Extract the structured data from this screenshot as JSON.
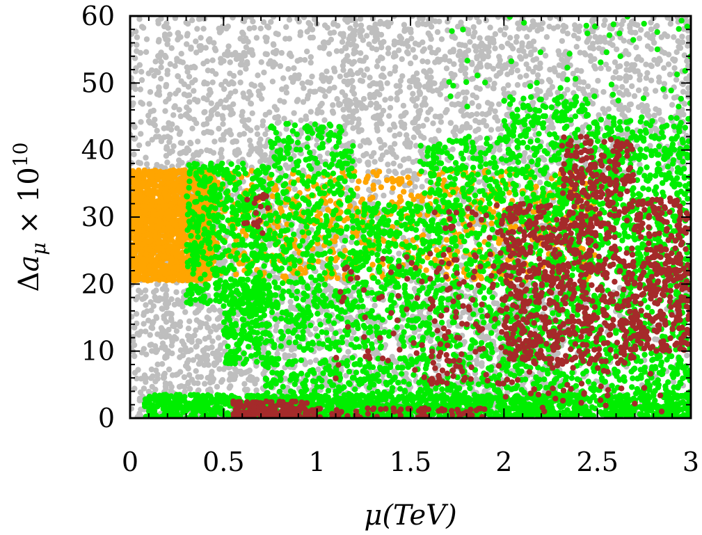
{
  "chart_data": {
    "type": "scatter",
    "title": "",
    "xlabel": "μ(TeV)",
    "ylabel_parts": {
      "delta": "Δ",
      "a": "a",
      "sub": "μ",
      "times": "×",
      "base": "10",
      "exp": "10"
    },
    "xlim": [
      0,
      3
    ],
    "ylim": [
      0,
      60
    ],
    "x_ticks": [
      {
        "value": 0,
        "label": "0"
      },
      {
        "value": 0.5,
        "label": "0.5"
      },
      {
        "value": 1,
        "label": "1"
      },
      {
        "value": 1.5,
        "label": "1.5"
      },
      {
        "value": 2,
        "label": "2"
      },
      {
        "value": 2.5,
        "label": "2.5"
      },
      {
        "value": 3,
        "label": "3"
      }
    ],
    "y_ticks": [
      {
        "value": 0,
        "label": "0"
      },
      {
        "value": 10,
        "label": "10"
      },
      {
        "value": 20,
        "label": "20"
      },
      {
        "value": 30,
        "label": "30"
      },
      {
        "value": 40,
        "label": "40"
      },
      {
        "value": 50,
        "label": "50"
      },
      {
        "value": 60,
        "label": "60"
      }
    ],
    "grid": false,
    "legend": "none",
    "colors": {
      "gray": "#bebebe",
      "orange": "#ffa500",
      "green": "#00ee00",
      "brown": "#a52a2a"
    },
    "series": [
      {
        "color": "gray",
        "regions": [
          {
            "x": [
              0.18,
              1.2
            ],
            "y": [
              0,
              60
            ],
            "n": 1700
          },
          {
            "x": [
              0.0,
              0.2
            ],
            "y": [
              0,
              60
            ],
            "n": 260
          },
          {
            "x": [
              1.15,
              3.0
            ],
            "y": [
              36,
              60
            ],
            "n": 1300
          },
          {
            "x": [
              1.2,
              2.3
            ],
            "y": [
              0,
              36
            ],
            "n": 900
          },
          {
            "x": [
              0.0,
              3.0
            ],
            "y": [
              0,
              20
            ],
            "n": 600
          }
        ]
      },
      {
        "color": "orange",
        "regions": [
          {
            "x": [
              0.0,
              0.45
            ],
            "y": [
              20.5,
              37
            ],
            "n": 1600
          },
          {
            "x": [
              0.45,
              2.5
            ],
            "y": [
              20.5,
              37
            ],
            "n": 700
          }
        ]
      },
      {
        "color": "green",
        "regions": [
          {
            "x": [
              0.07,
              3.0
            ],
            "y": [
              0,
              3.5
            ],
            "n": 1400
          },
          {
            "x": [
              0.3,
              0.75
            ],
            "y": [
              17,
              38
            ],
            "n": 520
          },
          {
            "x": [
              0.5,
              0.75
            ],
            "y": [
              8,
              20
            ],
            "n": 180
          },
          {
            "x": [
              0.75,
              1.2
            ],
            "y": [
              10,
              44
            ],
            "n": 520
          },
          {
            "x": [
              1.2,
              1.55
            ],
            "y": [
              10,
              32
            ],
            "n": 300
          },
          {
            "x": [
              0.7,
              1.6
            ],
            "y": [
              3,
              9
            ],
            "n": 220
          },
          {
            "x": [
              1.55,
              2.0
            ],
            "y": [
              3,
              42
            ],
            "n": 560
          },
          {
            "x": [
              2.0,
              2.45
            ],
            "y": [
              3,
              48
            ],
            "n": 760
          },
          {
            "x": [
              2.45,
              3.0
            ],
            "y": [
              3,
              45
            ],
            "n": 880
          },
          {
            "x": [
              1.7,
              3.0
            ],
            "y": [
              45,
              60
            ],
            "n": 60
          }
        ]
      },
      {
        "color": "brown",
        "regions": [
          {
            "x": [
              0.55,
              0.95
            ],
            "y": [
              0,
              2.5
            ],
            "n": 160
          },
          {
            "x": [
              0.95,
              1.9
            ],
            "y": [
              0,
              1.5
            ],
            "n": 70
          },
          {
            "x": [
              0.6,
              0.75
            ],
            "y": [
              27,
              34
            ],
            "n": 18
          },
          {
            "x": [
              1.1,
              1.7
            ],
            "y": [
              5,
              25
            ],
            "n": 55
          },
          {
            "x": [
              1.6,
              2.0
            ],
            "y": [
              5,
              32
            ],
            "n": 120
          },
          {
            "x": [
              2.0,
              2.3
            ],
            "y": [
              8,
              32
            ],
            "n": 330
          },
          {
            "x": [
              2.3,
              2.7
            ],
            "y": [
              8,
              42
            ],
            "n": 520
          },
          {
            "x": [
              2.7,
              3.0
            ],
            "y": [
              10,
              33
            ],
            "n": 320
          },
          {
            "x": [
              1.9,
              2.9
            ],
            "y": [
              0.5,
              8
            ],
            "n": 40
          }
        ]
      }
    ]
  }
}
